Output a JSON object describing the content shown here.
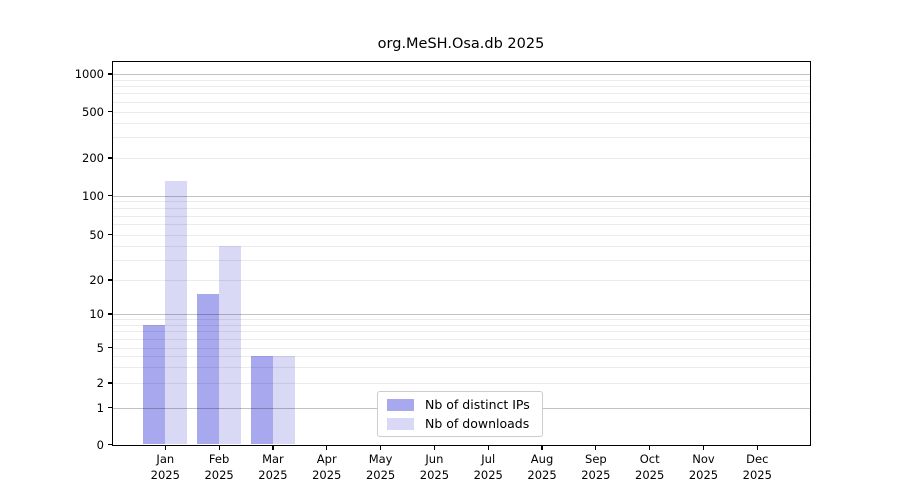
{
  "chart_data": {
    "type": "bar",
    "title": "org.MeSH.Osa.db 2025",
    "x_categories": [
      "Jan 2025",
      "Feb 2025",
      "Mar 2025",
      "Apr 2025",
      "May 2025",
      "Jun 2025",
      "Jul 2025",
      "Aug 2025",
      "Sep 2025",
      "Oct 2025",
      "Nov 2025",
      "Dec 2025"
    ],
    "x_tick_months": [
      "Jan",
      "Feb",
      "Mar",
      "Apr",
      "May",
      "Jun",
      "Jul",
      "Aug",
      "Sep",
      "Oct",
      "Nov",
      "Dec"
    ],
    "x_tick_year": "2025",
    "series": [
      {
        "name": "Nb of distinct IPs",
        "color": "#a8a8ef",
        "values": [
          8,
          15,
          4,
          0,
          0,
          0,
          0,
          0,
          0,
          0,
          0,
          0
        ]
      },
      {
        "name": "Nb of downloads",
        "color": "#d9d9f6",
        "values": [
          130,
          40,
          4,
          0,
          0,
          0,
          0,
          0,
          0,
          0,
          0,
          0
        ]
      }
    ],
    "y_scale": "symlog",
    "y_ticks": [
      0,
      1,
      2,
      5,
      10,
      20,
      50,
      100,
      200,
      500,
      1000
    ],
    "ylim": [
      0,
      1260
    ],
    "grid": true,
    "grid_major_at": [
      1,
      10,
      100,
      1000
    ],
    "legend_position": "lower center",
    "legend_entries": [
      "Nb of distinct IPs",
      "Nb of downloads"
    ]
  },
  "colors": {
    "distinct_ips_bar": "#a8a8ef",
    "downloads_bar": "#d9d9f6",
    "axis": "#000000",
    "grid_major": "#c2c2c2",
    "grid_minor": "#ececec",
    "legend_border": "#cccccc",
    "background": "#ffffff"
  }
}
